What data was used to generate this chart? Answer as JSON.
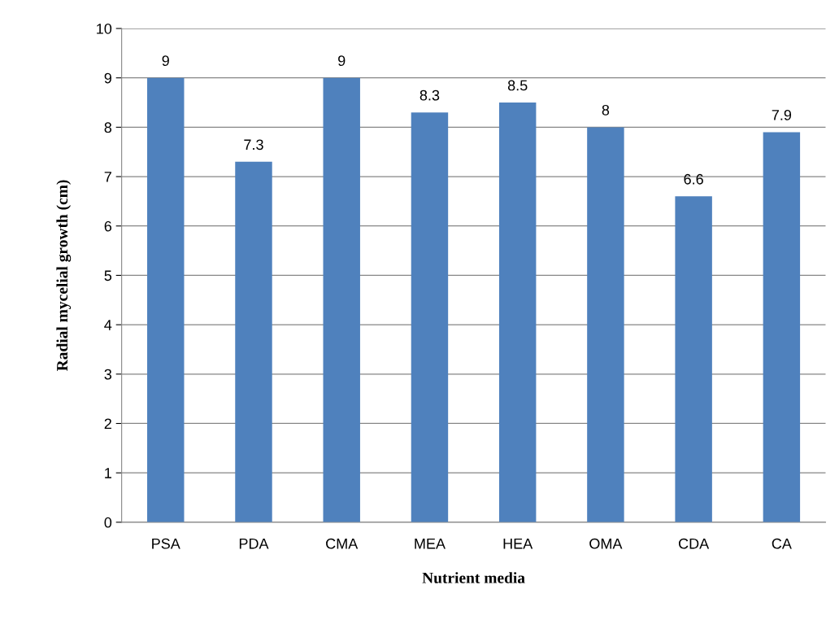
{
  "chart_data": {
    "type": "bar",
    "xlabel": "Nutrient media",
    "ylabel": "Radial mycelial growth (cm)",
    "categories": [
      "PSA",
      "PDA",
      "CMA",
      "MEA",
      "HEA",
      "OMA",
      "CDA",
      "CA"
    ],
    "values": [
      9,
      7.3,
      9,
      8.3,
      8.5,
      8,
      6.6,
      7.9
    ],
    "color": "#4f81bd",
    "ylim": [
      0,
      10
    ],
    "yticks": [
      0,
      1,
      2,
      3,
      4,
      5,
      6,
      7,
      8,
      9,
      10
    ],
    "grid": "y",
    "data_labels": true,
    "legend": false
  }
}
